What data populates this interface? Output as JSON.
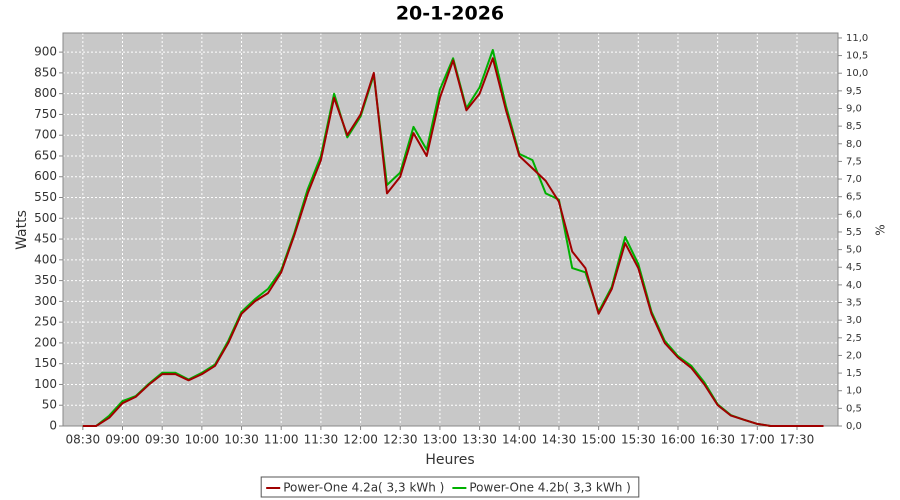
{
  "chart_data": {
    "type": "line",
    "title": "20-1-2026",
    "x_label": "Heures",
    "y_label": "Watts",
    "y2_label": "%",
    "x": [
      "08:30",
      "08:40",
      "08:50",
      "09:00",
      "09:10",
      "09:20",
      "09:30",
      "09:40",
      "09:50",
      "10:00",
      "10:10",
      "10:20",
      "10:30",
      "10:40",
      "10:50",
      "11:00",
      "11:10",
      "11:20",
      "11:30",
      "11:40",
      "11:50",
      "12:00",
      "12:10",
      "12:20",
      "12:30",
      "12:40",
      "12:50",
      "13:00",
      "13:10",
      "13:20",
      "13:30",
      "13:40",
      "13:50",
      "14:00",
      "14:10",
      "14:20",
      "14:30",
      "14:40",
      "14:50",
      "15:00",
      "15:10",
      "15:20",
      "15:30",
      "15:40",
      "15:50",
      "16:00",
      "16:10",
      "16:20",
      "16:30",
      "16:40",
      "16:50",
      "17:00",
      "17:10",
      "17:20",
      "17:30",
      "17:40",
      "17:50"
    ],
    "series": [
      {
        "name": "Power-One 4.2a( 3,3 kWh )",
        "color": "#a00000",
        "values": [
          0,
          0,
          20,
          55,
          70,
          100,
          125,
          125,
          110,
          125,
          145,
          200,
          270,
          300,
          320,
          370,
          460,
          560,
          640,
          790,
          700,
          750,
          850,
          560,
          600,
          705,
          650,
          790,
          880,
          760,
          800,
          885,
          760,
          650,
          620,
          590,
          540,
          420,
          380,
          270,
          330,
          440,
          380,
          270,
          200,
          165,
          140,
          100,
          50,
          25,
          15,
          5,
          0,
          0,
          0,
          0,
          0
        ]
      },
      {
        "name": "Power-One 4.2b( 3,3 kWh )",
        "color": "#00b000",
        "values": [
          0,
          0,
          25,
          60,
          72,
          102,
          128,
          128,
          112,
          128,
          148,
          205,
          275,
          305,
          330,
          375,
          465,
          570,
          650,
          800,
          695,
          745,
          845,
          580,
          610,
          720,
          665,
          810,
          885,
          765,
          815,
          905,
          770,
          655,
          640,
          560,
          545,
          380,
          370,
          275,
          335,
          455,
          390,
          275,
          205,
          168,
          145,
          105,
          52,
          26,
          15,
          5,
          0,
          0,
          0,
          0,
          0
        ]
      }
    ],
    "xlim": [
      "08:15",
      "18:01"
    ],
    "xticks": [
      "08:30",
      "09:00",
      "09:30",
      "10:00",
      "10:30",
      "11:00",
      "11:30",
      "12:00",
      "12:30",
      "13:00",
      "13:30",
      "14:00",
      "14:30",
      "15:00",
      "15:30",
      "16:00",
      "16:30",
      "17:00",
      "17:30"
    ],
    "ylim": [
      0,
      946
    ],
    "yticks": [
      0,
      50,
      100,
      150,
      200,
      250,
      300,
      350,
      400,
      450,
      500,
      550,
      600,
      650,
      700,
      750,
      800,
      850,
      900
    ],
    "y2lim": [
      0,
      11.14
    ],
    "y2ticks": [
      {
        "value": 0,
        "label": "0,0"
      },
      {
        "value": 0.5,
        "label": "0,5"
      },
      {
        "value": 1,
        "label": "1,0"
      },
      {
        "value": 1.5,
        "label": "1,5"
      },
      {
        "value": 2,
        "label": "2,0"
      },
      {
        "value": 2.5,
        "label": "2,5"
      },
      {
        "value": 3,
        "label": "3,0"
      },
      {
        "value": 3.5,
        "label": "3,5"
      },
      {
        "value": 4,
        "label": "4,0"
      },
      {
        "value": 4.5,
        "label": "4,5"
      },
      {
        "value": 5,
        "label": "5,0"
      },
      {
        "value": 5.5,
        "label": "5,5"
      },
      {
        "value": 6,
        "label": "6,0"
      },
      {
        "value": 6.5,
        "label": "6,5"
      },
      {
        "value": 7,
        "label": "7,0"
      },
      {
        "value": 7.5,
        "label": "7,5"
      },
      {
        "value": 8,
        "label": "8,0"
      },
      {
        "value": 8.5,
        "label": "8,5"
      },
      {
        "value": 9,
        "label": "9,0"
      },
      {
        "value": 9.5,
        "label": "9,5"
      },
      {
        "value": 10,
        "label": "10,0"
      },
      {
        "value": 10.5,
        "label": "10,5"
      },
      {
        "value": 11,
        "label": "11,0"
      }
    ],
    "grid": true,
    "legend": "bottom"
  }
}
